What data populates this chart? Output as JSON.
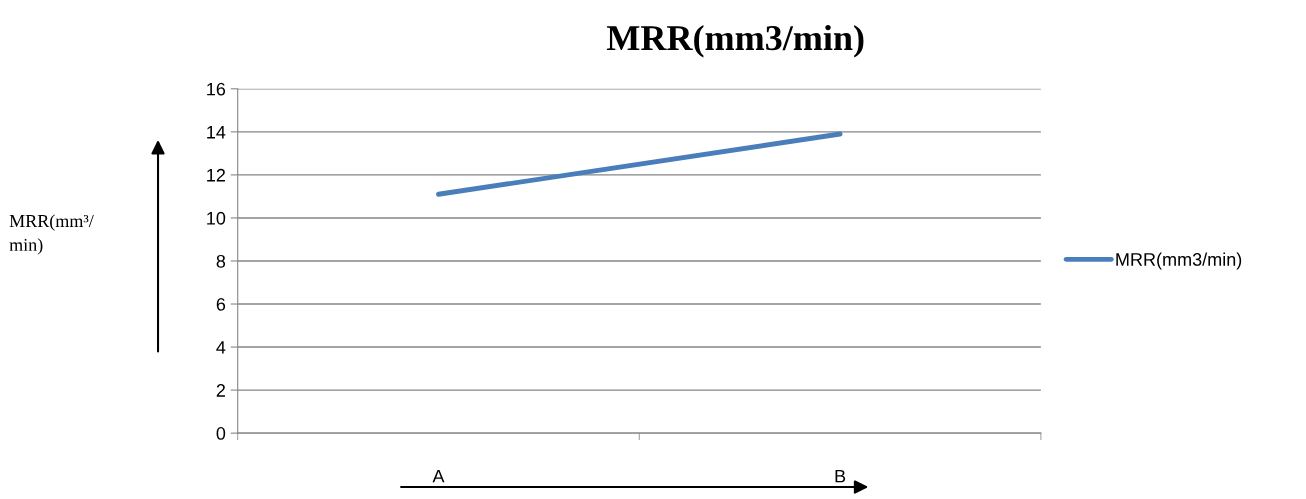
{
  "chart_data": {
    "type": "line",
    "title": "MRR(mm3/min)",
    "annotations": [
      "MRR(mm³/\nmin)"
    ],
    "categories": [
      "A",
      "B"
    ],
    "series": [
      {
        "name": "MRR(mm3/min)",
        "color": "#4a7ebb",
        "values": [
          11.1,
          13.9
        ]
      }
    ],
    "ylim": [
      0,
      16
    ],
    "yticks": [
      0,
      2,
      4,
      6,
      8,
      10,
      12,
      14,
      16
    ],
    "grid": "y",
    "legend": "right",
    "marker": "none",
    "line_style": "solid"
  }
}
